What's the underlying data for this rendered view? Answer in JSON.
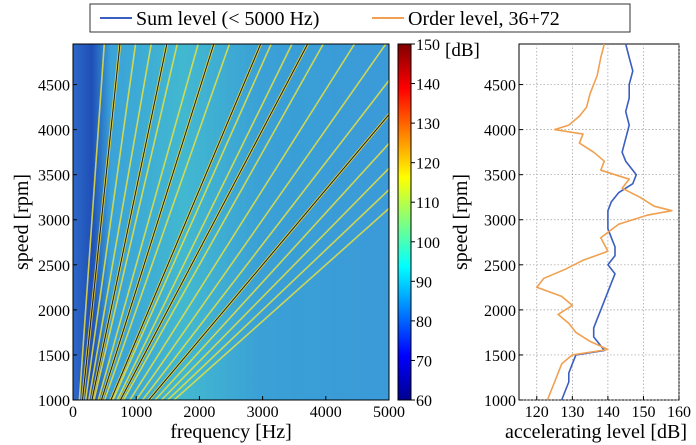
{
  "legend": {
    "entries": [
      {
        "label": "Sum level (< 5000 Hz)",
        "color": "#3b5fc0"
      },
      {
        "label": "Order level, 36+72",
        "color": "#f0a050"
      }
    ]
  },
  "chart_data": [
    {
      "type": "heatmap",
      "title": "",
      "xlabel": "frequency [Hz]",
      "ylabel": "speed [rpm]",
      "xlim": [
        0,
        5000
      ],
      "ylim": [
        1000,
        4950
      ],
      "x_ticks": [
        0,
        1000,
        2000,
        3000,
        4000,
        5000
      ],
      "y_ticks": [
        1000,
        1500,
        2000,
        2500,
        3000,
        3500,
        4000,
        4500
      ],
      "colorbar": {
        "label": "[dB]",
        "range": [
          60,
          150
        ],
        "ticks": [
          60,
          70,
          80,
          90,
          100,
          110,
          120,
          130,
          140,
          150
        ],
        "colormap": "jet"
      },
      "order_lines_black": [
        9,
        18,
        27,
        36,
        45,
        72
      ],
      "order_lines_yellow": [
        6,
        12,
        15,
        20,
        24,
        30,
        38,
        42,
        48,
        54,
        60,
        66,
        78,
        84,
        90,
        96
      ]
    },
    {
      "type": "line",
      "title": "",
      "xlabel": "accelerating level [dB]",
      "ylabel": "speed [rpm]",
      "xlim": [
        115,
        160
      ],
      "ylim": [
        1000,
        4950
      ],
      "x_ticks": [
        120,
        130,
        140,
        150,
        160
      ],
      "y_ticks": [
        1000,
        1500,
        2000,
        2500,
        3000,
        3500,
        4000,
        4500
      ],
      "grid": true,
      "series": [
        {
          "name": "Sum level (< 5000 Hz)",
          "color": "#3b5fc0",
          "points": [
            [
              4950,
              145
            ],
            [
              4800,
              146
            ],
            [
              4650,
              147
            ],
            [
              4500,
              146
            ],
            [
              4350,
              146
            ],
            [
              4200,
              145
            ],
            [
              4050,
              146
            ],
            [
              3900,
              145
            ],
            [
              3750,
              144
            ],
            [
              3650,
              145
            ],
            [
              3500,
              148
            ],
            [
              3400,
              147
            ],
            [
              3300,
              143
            ],
            [
              3200,
              141
            ],
            [
              3100,
              140
            ],
            [
              3000,
              140
            ],
            [
              2900,
              140
            ],
            [
              2800,
              141
            ],
            [
              2700,
              142
            ],
            [
              2600,
              142
            ],
            [
              2500,
              140
            ],
            [
              2400,
              142
            ],
            [
              2300,
              141
            ],
            [
              2200,
              140
            ],
            [
              2100,
              139
            ],
            [
              2000,
              138
            ],
            [
              1900,
              137
            ],
            [
              1800,
              136
            ],
            [
              1700,
              136
            ],
            [
              1600,
              138
            ],
            [
              1550,
              139
            ],
            [
              1500,
              131
            ],
            [
              1400,
              130
            ],
            [
              1300,
              129
            ],
            [
              1200,
              129
            ],
            [
              1100,
              128
            ],
            [
              1000,
              127
            ]
          ]
        },
        {
          "name": "Order level, 36+72",
          "color": "#f0a050",
          "points": [
            [
              4950,
              139
            ],
            [
              4800,
              138
            ],
            [
              4600,
              137
            ],
            [
              4400,
              135
            ],
            [
              4250,
              134
            ],
            [
              4150,
              132
            ],
            [
              4050,
              129
            ],
            [
              4000,
              125
            ],
            [
              3950,
              133
            ],
            [
              3850,
              132
            ],
            [
              3750,
              136
            ],
            [
              3650,
              139
            ],
            [
              3550,
              138
            ],
            [
              3450,
              146
            ],
            [
              3350,
              144
            ],
            [
              3250,
              149
            ],
            [
              3150,
              153
            ],
            [
              3100,
              158
            ],
            [
              3050,
              151
            ],
            [
              2950,
              143
            ],
            [
              2800,
              138
            ],
            [
              2650,
              140
            ],
            [
              2550,
              133
            ],
            [
              2450,
              128
            ],
            [
              2350,
              122
            ],
            [
              2250,
              120
            ],
            [
              2150,
              127
            ],
            [
              2050,
              130
            ],
            [
              1950,
              126
            ],
            [
              1850,
              129
            ],
            [
              1750,
              131
            ],
            [
              1650,
              135
            ],
            [
              1560,
              140
            ],
            [
              1500,
              130
            ],
            [
              1400,
              127
            ],
            [
              1300,
              126
            ],
            [
              1200,
              125
            ],
            [
              1100,
              124
            ],
            [
              1000,
              123
            ]
          ]
        }
      ]
    }
  ]
}
